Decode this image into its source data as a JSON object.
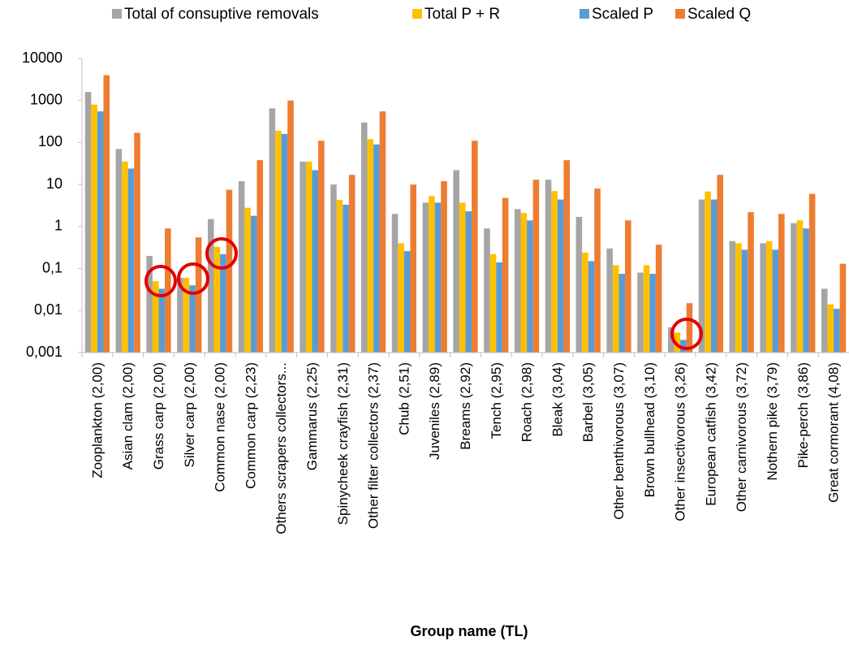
{
  "chart_data": {
    "type": "bar",
    "x_label": "Group name (TL)",
    "categories": [
      "Zooplankton (2,00)",
      "Asian clam (2,00)",
      "Grass carp (2,00)",
      "Silver carp (2,00)",
      "Common nase (2,00)",
      "Common carp (2,23)",
      "Others scrapers collectors...",
      "Gammarus (2,25)",
      "Spinycheek crayfish (2,31)",
      "Other filter collectors (2,37)",
      "Chub (2,51)",
      "Juveniles (2,89)",
      "Breams (2,92)",
      "Tench (2,95)",
      "Roach (2,98)",
      "Bleak (3,04)",
      "Barbel (3,05)",
      "Other benthivorous (3,07)",
      "Brown bullhead (3,10)",
      "Other insectivorous (3,26)",
      "European catfish (3,42)",
      "Other carnivorous (3,72)",
      "Nothern pike (3,79)",
      "Pike-perch (3,86)",
      "Great cormorant (4,08)"
    ],
    "series": [
      {
        "name": "Total of consuptive removals",
        "color": "#a5a5a5",
        "values": [
          1600,
          70,
          0.2,
          0.06,
          1.5,
          12,
          650,
          35,
          10,
          300,
          2,
          3.7,
          22,
          0.9,
          2.6,
          13,
          1.7,
          0.3,
          0.08,
          0.004,
          4.4,
          0.45,
          0.4,
          1.2,
          0.033
        ]
      },
      {
        "name": "Total P + R",
        "color": "#ffc000",
        "values": [
          800,
          35,
          0.05,
          0.06,
          0.33,
          2.8,
          190,
          35,
          4.3,
          120,
          0.4,
          5.3,
          3.7,
          0.22,
          2.1,
          7,
          0.24,
          0.12,
          0.12,
          0.003,
          6.8,
          0.4,
          0.45,
          1.4,
          0.014
        ]
      },
      {
        "name": "Scaled P",
        "color": "#5b9bd5",
        "values": [
          550,
          24,
          0.033,
          0.04,
          0.22,
          1.8,
          160,
          22,
          3.3,
          90,
          0.26,
          3.7,
          2.3,
          0.14,
          1.4,
          4.4,
          0.15,
          0.075,
          0.075,
          0.002,
          4.4,
          0.28,
          0.28,
          0.9,
          0.011
        ]
      },
      {
        "name": "Scaled Q",
        "color": "#ed7d31",
        "values": [
          4000,
          170,
          0.9,
          0.55,
          7.5,
          38,
          1000,
          110,
          17,
          550,
          10,
          12,
          110,
          4.8,
          13,
          38,
          8,
          1.4,
          0.37,
          0.015,
          17,
          2.2,
          2,
          6,
          0.13
        ]
      }
    ],
    "log_y": true,
    "ylim": [
      0.001,
      10000
    ],
    "yticks": [
      {
        "value": 0.001,
        "label": "0,001"
      },
      {
        "value": 0.01,
        "label": "0,01"
      },
      {
        "value": 0.1,
        "label": "0,1"
      },
      1,
      10,
      100,
      1000,
      10000
    ],
    "grid": false,
    "legend": "top"
  }
}
